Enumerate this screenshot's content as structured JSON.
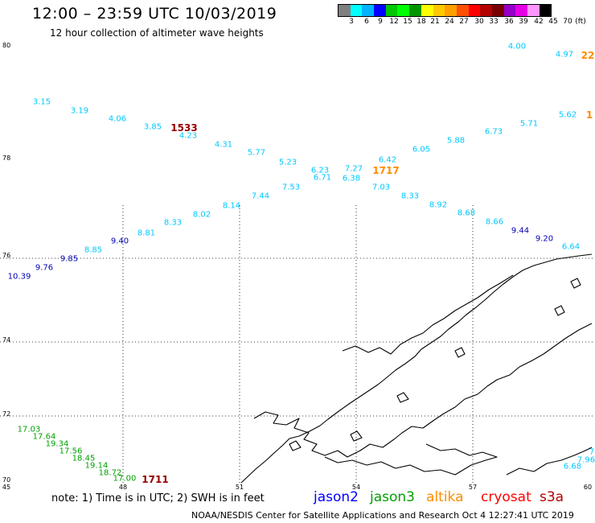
{
  "header": {
    "title": "12:00 – 23:59 UTC 10/03/2019",
    "subtitle": "12 hour collection of altimeter wave heights"
  },
  "legend": {
    "colors": [
      "#808080",
      "#00ffff",
      "#00b4ff",
      "#0000ff",
      "#00c800",
      "#00ff00",
      "#009600",
      "#ffff00",
      "#ffc800",
      "#ffa000",
      "#ff5000",
      "#ff0000",
      "#b40000",
      "#780000",
      "#9600c8",
      "#e600e6",
      "#ff96ff",
      "#000000"
    ],
    "labels": [
      "3",
      "6",
      "9",
      "12",
      "15",
      "18",
      "21",
      "24",
      "27",
      "30",
      "33",
      "36",
      "39",
      "42",
      "45",
      "70",
      "(ft)"
    ]
  },
  "axes": {
    "lat_labels": [
      "80",
      "78",
      "76",
      "74",
      "72",
      "70"
    ],
    "lon_labels": [
      "45",
      "48",
      "51",
      "54",
      "57",
      "60"
    ]
  },
  "colors": {
    "cyan": "#00c8ff",
    "blue": "#0000b4",
    "green": "#00a000",
    "orange": "#ff8c00",
    "darkred": "#960000",
    "coast": "#000000"
  },
  "observations": [
    {
      "v": "4.00",
      "c": "cyan"
    },
    {
      "v": "4.97",
      "c": "cyan"
    },
    {
      "v": "3.15",
      "c": "cyan"
    },
    {
      "v": "3.19",
      "c": "cyan"
    },
    {
      "v": "4.06",
      "c": "cyan"
    },
    {
      "v": "3.85",
      "c": "cyan"
    },
    {
      "v": "4.23",
      "c": "cyan"
    },
    {
      "v": "4.31",
      "c": "cyan"
    },
    {
      "v": "5.77",
      "c": "cyan"
    },
    {
      "v": "5.23",
      "c": "cyan"
    },
    {
      "v": "6.23",
      "c": "cyan"
    },
    {
      "v": "6.71",
      "c": "cyan"
    },
    {
      "v": "7.27",
      "c": "cyan"
    },
    {
      "v": "6.38",
      "c": "cyan"
    },
    {
      "v": "6.42",
      "c": "cyan"
    },
    {
      "v": "6.05",
      "c": "cyan"
    },
    {
      "v": "5.88",
      "c": "cyan"
    },
    {
      "v": "6.73",
      "c": "cyan"
    },
    {
      "v": "5.71",
      "c": "cyan"
    },
    {
      "v": "5.62",
      "c": "cyan"
    },
    {
      "v": "7.44",
      "c": "cyan"
    },
    {
      "v": "7.53",
      "c": "cyan"
    },
    {
      "v": "7.03",
      "c": "cyan"
    },
    {
      "v": "8.33",
      "c": "cyan"
    },
    {
      "v": "8.92",
      "c": "cyan"
    },
    {
      "v": "8.68",
      "c": "cyan"
    },
    {
      "v": "8.66",
      "c": "cyan"
    },
    {
      "v": "9.44",
      "c": "blue"
    },
    {
      "v": "9.20",
      "c": "blue"
    },
    {
      "v": "6.64",
      "c": "cyan"
    },
    {
      "v": "8.14",
      "c": "cyan"
    },
    {
      "v": "8.02",
      "c": "cyan"
    },
    {
      "v": "8.33",
      "c": "cyan"
    },
    {
      "v": "8.81",
      "c": "cyan"
    },
    {
      "v": "9.40",
      "c": "blue"
    },
    {
      "v": "8.85",
      "c": "cyan"
    },
    {
      "v": "9.85",
      "c": "blue"
    },
    {
      "v": "9.76",
      "c": "blue"
    },
    {
      "v": "10.39",
      "c": "blue"
    },
    {
      "v": "17.03",
      "c": "green"
    },
    {
      "v": "17.64",
      "c": "green"
    },
    {
      "v": "19.34",
      "c": "green"
    },
    {
      "v": "17.56",
      "c": "green"
    },
    {
      "v": "18.45",
      "c": "green"
    },
    {
      "v": "19.14",
      "c": "green"
    },
    {
      "v": "18.72",
      "c": "green"
    },
    {
      "v": "17.00",
      "c": "green"
    },
    {
      "v": "7.96",
      "c": "cyan"
    },
    {
      "v": "6.68",
      "c": "cyan"
    },
    {
      "v": "7",
      "c": "cyan"
    }
  ],
  "pass_times": [
    {
      "t": "1533",
      "c": "darkred"
    },
    {
      "t": "1717",
      "c": "orange"
    },
    {
      "t": "22",
      "c": "orange"
    },
    {
      "t": "1",
      "c": "orange"
    },
    {
      "t": "1711",
      "c": "darkred"
    }
  ],
  "footer": {
    "note": "note:  1) Time is in UTC;  2) SWH is in feet",
    "missions": [
      {
        "name": "jason2",
        "color": "#0000ff"
      },
      {
        "name": "jason3",
        "color": "#00a000"
      },
      {
        "name": "altika",
        "color": "#ff8c00"
      },
      {
        "name": "cryosat",
        "color": "#ff0000"
      },
      {
        "name": "s3a",
        "color": "#b40000"
      }
    ],
    "credit": "NOAA/NESDIS Center for Satellite Applications and Research     Oct  4 12:27:41 UTC 2019"
  }
}
